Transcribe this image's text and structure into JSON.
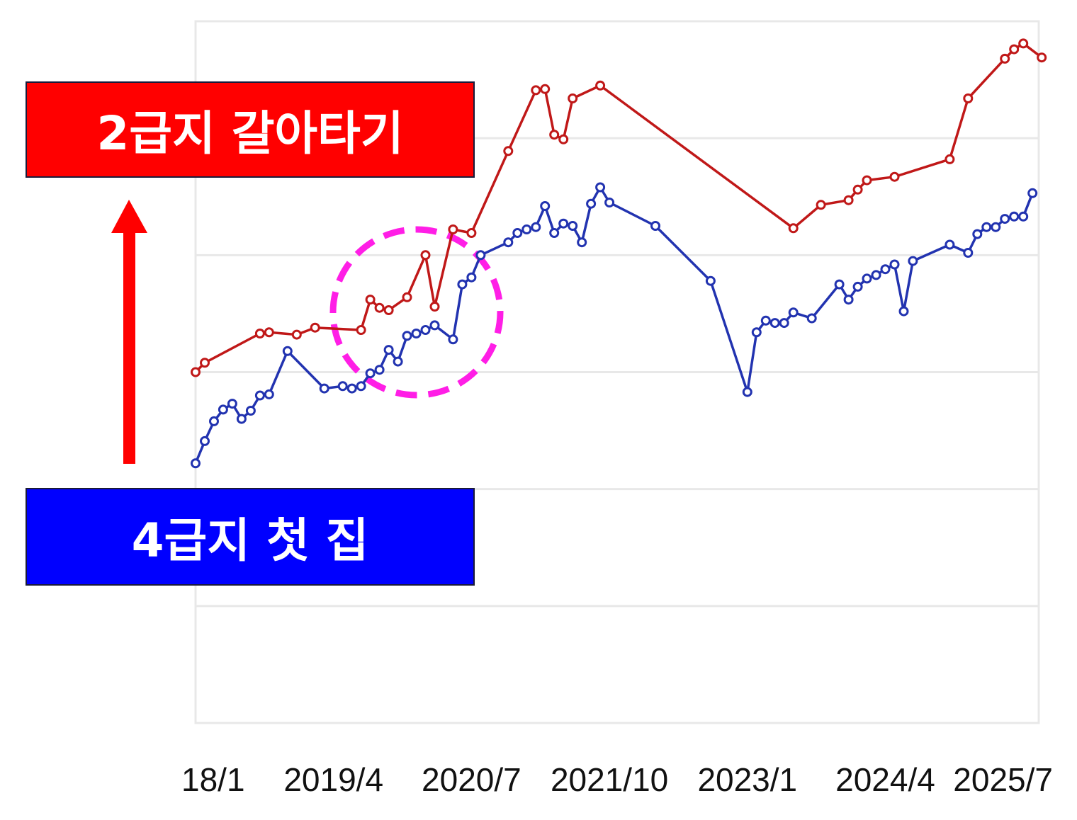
{
  "labels": {
    "upper": "2급지 갈아타기",
    "lower": "4급지 첫 집"
  },
  "colors": {
    "upper_box": "#ff0000",
    "lower_box": "#0000ff",
    "upper_series": "#c01818",
    "lower_series": "#2233b0",
    "arrow": "#ff0000",
    "highlight_circle": "#ff1ee6",
    "grid": "#e8e8e8"
  },
  "chart_data": {
    "type": "line",
    "x_ticks": [
      "18/1",
      "2019/4",
      "2020/7",
      "2021/10",
      "2023/1",
      "2024/4",
      "2025/7"
    ],
    "x_tick_index": [
      0,
      15,
      30,
      45,
      60,
      75,
      90
    ],
    "xlim": [
      0,
      96
    ],
    "y_axis_labels": "none",
    "ylim": [
      0,
      6
    ],
    "grid": "horizontal",
    "annotations": [
      "upward arrow from lower label to upper label",
      "dashed circle around 2019/12–2020/7"
    ],
    "series": [
      {
        "color": "#c01818",
        "points": [
          [
            0,
            3.0
          ],
          [
            1,
            3.08
          ],
          [
            7,
            3.33
          ],
          [
            8,
            3.34
          ],
          [
            11,
            3.32
          ],
          [
            13,
            3.38
          ],
          [
            18,
            3.36
          ],
          [
            19,
            3.62
          ],
          [
            20,
            3.55
          ],
          [
            21,
            3.53
          ],
          [
            23,
            3.64
          ],
          [
            25,
            4.0
          ],
          [
            26,
            3.56
          ],
          [
            28,
            4.22
          ],
          [
            30,
            4.19
          ],
          [
            34,
            4.89
          ],
          [
            37,
            5.41
          ],
          [
            38,
            5.42
          ],
          [
            39,
            5.03
          ],
          [
            40,
            4.99
          ],
          [
            41,
            5.34
          ],
          [
            44,
            5.45
          ],
          [
            65,
            4.23
          ],
          [
            68,
            4.43
          ],
          [
            71,
            4.47
          ],
          [
            72,
            4.56
          ],
          [
            73,
            4.64
          ],
          [
            76,
            4.67
          ],
          [
            82,
            4.82
          ],
          [
            84,
            5.34
          ],
          [
            88,
            5.68
          ],
          [
            89,
            5.76
          ],
          [
            90,
            5.81
          ],
          [
            92,
            5.69
          ]
        ]
      },
      {
        "color": "#2233b0",
        "points": [
          [
            0,
            2.22
          ],
          [
            1,
            2.41
          ],
          [
            2,
            2.58
          ],
          [
            3,
            2.68
          ],
          [
            4,
            2.73
          ],
          [
            5,
            2.6
          ],
          [
            6,
            2.67
          ],
          [
            7,
            2.8
          ],
          [
            8,
            2.81
          ],
          [
            10,
            3.18
          ],
          [
            14,
            2.86
          ],
          [
            16,
            2.88
          ],
          [
            17,
            2.86
          ],
          [
            18,
            2.88
          ],
          [
            19,
            2.99
          ],
          [
            20,
            3.02
          ],
          [
            21,
            3.19
          ],
          [
            22,
            3.09
          ],
          [
            23,
            3.31
          ],
          [
            24,
            3.33
          ],
          [
            25,
            3.36
          ],
          [
            26,
            3.4
          ],
          [
            28,
            3.28
          ],
          [
            29,
            3.75
          ],
          [
            30,
            3.81
          ],
          [
            31,
            4.0
          ],
          [
            34,
            4.11
          ],
          [
            35,
            4.19
          ],
          [
            36,
            4.22
          ],
          [
            37,
            4.24
          ],
          [
            38,
            4.42
          ],
          [
            39,
            4.19
          ],
          [
            40,
            4.27
          ],
          [
            41,
            4.25
          ],
          [
            42,
            4.11
          ],
          [
            43,
            4.44
          ],
          [
            44,
            4.58
          ],
          [
            45,
            4.45
          ],
          [
            50,
            4.25
          ],
          [
            56,
            3.78
          ],
          [
            60,
            2.83
          ],
          [
            61,
            3.34
          ],
          [
            62,
            3.44
          ],
          [
            63,
            3.42
          ],
          [
            64,
            3.42
          ],
          [
            65,
            3.51
          ],
          [
            67,
            3.46
          ],
          [
            70,
            3.75
          ],
          [
            71,
            3.62
          ],
          [
            72,
            3.73
          ],
          [
            73,
            3.8
          ],
          [
            74,
            3.83
          ],
          [
            75,
            3.88
          ],
          [
            76,
            3.92
          ],
          [
            77,
            3.52
          ],
          [
            78,
            3.95
          ],
          [
            82,
            4.09
          ],
          [
            84,
            4.02
          ],
          [
            85,
            4.18
          ],
          [
            86,
            4.24
          ],
          [
            87,
            4.24
          ],
          [
            88,
            4.31
          ],
          [
            89,
            4.33
          ],
          [
            90,
            4.33
          ],
          [
            91,
            4.53
          ]
        ]
      }
    ]
  }
}
